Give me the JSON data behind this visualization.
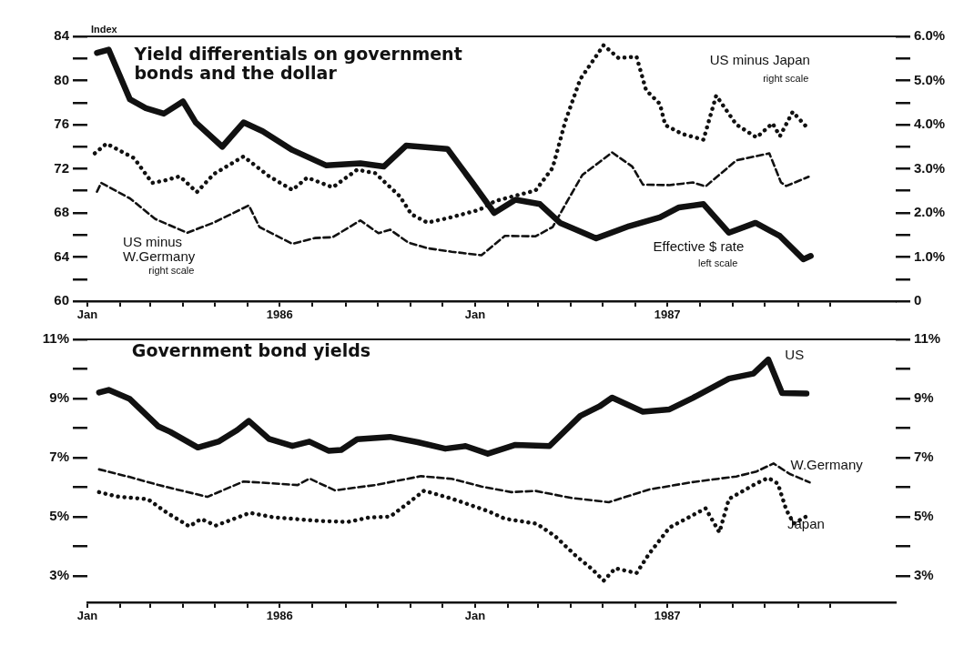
{
  "chart_data": [
    {
      "type": "line",
      "title": "Yield differentials on government bonds and the dollar",
      "ylabel": "Index",
      "annotations": [
        "left scale",
        "right scale",
        "right scale"
      ],
      "xlim": [
        "1986-01",
        "1988-02"
      ],
      "xticks": [
        {
          "value": "1986-01",
          "label": "Jan"
        },
        {
          "value": "1986-02",
          "label": null
        },
        {
          "value": "1986-03",
          "label": null
        },
        {
          "value": "1986-04",
          "label": null
        },
        {
          "value": "1986-05",
          "label": null
        },
        {
          "value": "1986-06",
          "label": null
        },
        {
          "value": "1986-07",
          "label": "1986"
        },
        {
          "value": "1986-08",
          "label": null
        },
        {
          "value": "1986-09",
          "label": null
        },
        {
          "value": "1986-10",
          "label": null
        },
        {
          "value": "1986-11",
          "label": null
        },
        {
          "value": "1986-12",
          "label": null
        },
        {
          "value": "1987-01",
          "label": "Jan"
        },
        {
          "value": "1987-02",
          "label": null
        },
        {
          "value": "1987-03",
          "label": null
        },
        {
          "value": "1987-04",
          "label": null
        },
        {
          "value": "1987-05",
          "label": null
        },
        {
          "value": "1987-06",
          "label": null
        },
        {
          "value": "1987-07",
          "label": "1987"
        },
        {
          "value": "1987-08",
          "label": null
        },
        {
          "value": "1987-09",
          "label": null
        },
        {
          "value": "1987-10",
          "label": null
        },
        {
          "value": "1987-11",
          "label": null
        },
        {
          "value": "1987-12",
          "label": null
        }
      ],
      "ylim": [
        60,
        84
      ],
      "yticks": [
        60,
        {
          "value": 62,
          "label": null
        },
        64,
        {
          "value": 66,
          "label": null
        },
        68,
        {
          "value": 70,
          "label": null
        },
        72,
        {
          "value": 74,
          "label": null
        },
        76,
        {
          "value": 78,
          "label": null
        },
        80,
        {
          "value": 82,
          "label": null
        },
        84
      ],
      "y2lim": [
        0,
        6
      ],
      "y2ticks": [
        0,
        {
          "value": 0.5,
          "label": null
        },
        {
          "value": 1,
          "label": "1.0%"
        },
        {
          "value": 1.5,
          "label": null
        },
        {
          "value": 2,
          "label": "2.0%"
        },
        {
          "value": 2.5,
          "label": null
        },
        {
          "value": 3,
          "label": "3.0%"
        },
        {
          "value": 3.5,
          "label": null
        },
        {
          "value": 4,
          "label": "4.0%"
        },
        {
          "value": 4.5,
          "label": null
        },
        {
          "value": 5,
          "label": "5.0%"
        },
        {
          "value": 5.5,
          "label": null
        },
        {
          "value": 6,
          "label": "6.0%"
        }
      ],
      "series": [
        {
          "name": "Effective $ rate",
          "color": "#111111",
          "line_style": "solid",
          "axis": "y",
          "x": [
            "1986-01-10",
            "1986-01-21",
            "1986-02-10",
            "1986-02-25",
            "1986-03-14",
            "1986-04-01",
            "1986-04-13",
            "1986-05-08",
            "1986-05-28",
            "1986-06-15",
            "1986-07-13",
            "1986-08-14",
            "1986-09-15",
            "1986-10-07",
            "1986-10-28",
            "1986-12-06",
            "1986-12-29",
            "1987-01-19",
            "1987-02-08",
            "1987-03-03",
            "1987-03-22",
            "1987-04-25",
            "1987-05-26",
            "1987-06-24",
            "1987-07-12",
            "1987-08-04",
            "1987-08-28",
            "1987-09-22",
            "1987-10-15",
            "1987-11-06",
            "1987-11-13"
          ],
          "values": [
            82.5,
            82.8,
            78.3,
            77.5,
            77.0,
            78.1,
            76.2,
            74.0,
            76.2,
            75.4,
            73.7,
            72.3,
            72.5,
            72.2,
            74.1,
            73.8,
            70.8,
            68.0,
            69.2,
            68.8,
            67.1,
            65.7,
            66.8,
            67.6,
            68.5,
            68.8,
            66.2,
            67.1,
            65.9,
            63.8,
            64.1
          ]
        },
        {
          "name": "US minus Japan",
          "color": "#111111",
          "line_style": "dotted",
          "axis": "y2",
          "x": [
            "1986-01-08",
            "1986-01-19",
            "1986-02-14",
            "1986-03-03",
            "1986-03-14",
            "1986-03-29",
            "1986-04-14",
            "1986-04-30",
            "1986-05-28",
            "1986-06-21",
            "1986-07-13",
            "1986-07-27",
            "1986-08-20",
            "1986-09-12",
            "1986-09-29",
            "1986-10-22",
            "1986-11-02",
            "1986-11-17",
            "1986-12-06",
            "1987-01-05",
            "1987-01-20",
            "1987-02-27",
            "1987-03-15",
            "1987-03-27",
            "1987-04-10",
            "1987-05-02",
            "1987-05-16",
            "1987-06-02",
            "1987-06-11",
            "1987-06-24",
            "1987-06-29",
            "1987-07-15",
            "1987-08-04",
            "1987-08-16",
            "1987-09-04",
            "1987-09-23",
            "1987-10-08",
            "1987-10-15",
            "1987-10-27",
            "1987-11-09"
          ],
          "values": [
            3.35,
            3.57,
            3.24,
            2.68,
            2.73,
            2.83,
            2.47,
            2.88,
            3.28,
            2.83,
            2.52,
            2.8,
            2.58,
            2.98,
            2.9,
            2.38,
            1.97,
            1.78,
            1.88,
            2.07,
            2.27,
            2.51,
            3.02,
            4.08,
            5.03,
            5.8,
            5.51,
            5.54,
            4.78,
            4.47,
            3.99,
            3.79,
            3.66,
            4.66,
            4.0,
            3.71,
            4.03,
            3.74,
            4.29,
            3.95
          ]
        },
        {
          "name": "US minus W.Germany",
          "color": "#111111",
          "line_style": "dashed",
          "axis": "y2",
          "x": [
            "1986-01-10",
            "1986-01-14",
            "1986-02-10",
            "1986-03-06",
            "1986-04-05",
            "1986-04-30",
            "1986-06-02",
            "1986-06-12",
            "1986-07-13",
            "1986-08-03",
            "1986-08-20",
            "1986-09-15",
            "1986-10-02",
            "1986-10-13",
            "1986-10-30",
            "1986-11-17",
            "1986-12-10",
            "1987-01-07",
            "1987-01-29",
            "1987-02-27",
            "1987-03-15",
            "1987-03-27",
            "1987-04-12",
            "1987-04-28",
            "1987-05-10",
            "1987-05-29",
            "1987-06-08",
            "1987-07-03",
            "1987-07-25",
            "1987-08-06",
            "1987-09-04",
            "1987-10-05",
            "1987-10-16",
            "1987-10-21",
            "1987-11-11"
          ],
          "values": [
            2.48,
            2.68,
            2.33,
            1.86,
            1.55,
            1.78,
            2.17,
            1.68,
            1.3,
            1.43,
            1.45,
            1.83,
            1.54,
            1.62,
            1.33,
            1.2,
            1.12,
            1.04,
            1.48,
            1.47,
            1.68,
            2.19,
            2.86,
            3.15,
            3.37,
            3.05,
            2.64,
            2.63,
            2.69,
            2.6,
            3.19,
            3.35,
            2.69,
            2.61,
            2.82
          ]
        }
      ]
    },
    {
      "type": "line",
      "title": "Government bond yields",
      "xlim": [
        "1986-01",
        "1988-02"
      ],
      "xticks": [
        {
          "value": "1986-01",
          "label": "Jan"
        },
        {
          "value": "1986-02",
          "label": null
        },
        {
          "value": "1986-03",
          "label": null
        },
        {
          "value": "1986-04",
          "label": null
        },
        {
          "value": "1986-05",
          "label": null
        },
        {
          "value": "1986-06",
          "label": null
        },
        {
          "value": "1986-07",
          "label": "1986"
        },
        {
          "value": "1986-08",
          "label": null
        },
        {
          "value": "1986-09",
          "label": null
        },
        {
          "value": "1986-10",
          "label": null
        },
        {
          "value": "1986-11",
          "label": null
        },
        {
          "value": "1986-12",
          "label": null
        },
        {
          "value": "1987-01",
          "label": "Jan"
        },
        {
          "value": "1987-02",
          "label": null
        },
        {
          "value": "1987-03",
          "label": null
        },
        {
          "value": "1987-04",
          "label": null
        },
        {
          "value": "1987-05",
          "label": null
        },
        {
          "value": "1987-06",
          "label": null
        },
        {
          "value": "1987-07",
          "label": "1987"
        },
        {
          "value": "1987-08",
          "label": null
        },
        {
          "value": "1987-09",
          "label": null
        },
        {
          "value": "1987-10",
          "label": null
        },
        {
          "value": "1987-11",
          "label": null
        },
        {
          "value": "1987-12",
          "label": null
        }
      ],
      "ylim": [
        2.1,
        11
      ],
      "yticks": [
        {
          "value": 3,
          "label": "3%"
        },
        {
          "value": 4,
          "label": null
        },
        {
          "value": 5,
          "label": "5%"
        },
        {
          "value": 6,
          "label": null
        },
        {
          "value": 7,
          "label": "7%"
        },
        {
          "value": 8,
          "label": null
        },
        {
          "value": 9,
          "label": "9%"
        },
        {
          "value": 10,
          "label": null
        },
        {
          "value": 11,
          "label": "11%"
        }
      ],
      "y2lim": [
        2.1,
        11
      ],
      "y2ticks": [
        {
          "value": 3,
          "label": "3%"
        },
        {
          "value": 4,
          "label": null
        },
        {
          "value": 5,
          "label": "5%"
        },
        {
          "value": 6,
          "label": null
        },
        {
          "value": 7,
          "label": "7%"
        },
        {
          "value": 8,
          "label": null
        },
        {
          "value": 9,
          "label": "9%"
        },
        {
          "value": 10,
          "label": null
        },
        {
          "value": 11,
          "label": "11%"
        }
      ],
      "series": [
        {
          "name": "US",
          "color": "#111111",
          "line_style": "solid",
          "axis": "y",
          "x": [
            "1986-01-12",
            "1986-01-21",
            "1986-02-10",
            "1986-03-09",
            "1986-03-20",
            "1986-04-15",
            "1986-05-05",
            "1986-05-22",
            "1986-06-02",
            "1986-06-21",
            "1986-07-13",
            "1986-07-29",
            "1986-08-16",
            "1986-08-28",
            "1986-09-12",
            "1986-10-13",
            "1986-11-08",
            "1986-12-04",
            "1986-12-23",
            "1987-01-13",
            "1987-02-08",
            "1987-03-12",
            "1987-04-10",
            "1987-04-28",
            "1987-05-10",
            "1987-06-08",
            "1987-07-03",
            "1987-07-25",
            "1987-08-28",
            "1987-09-20",
            "1987-10-04",
            "1987-10-17",
            "1987-11-09"
          ],
          "values": [
            9.2,
            9.29,
            8.98,
            8.05,
            7.87,
            7.34,
            7.55,
            7.93,
            8.24,
            7.63,
            7.39,
            7.54,
            7.23,
            7.26,
            7.62,
            7.7,
            7.52,
            7.3,
            7.39,
            7.13,
            7.43,
            7.39,
            8.41,
            8.73,
            9.03,
            8.55,
            8.63,
            9.02,
            9.67,
            9.84,
            10.32,
            9.18,
            9.17
          ]
        },
        {
          "name": "W.Germany",
          "color": "#111111",
          "line_style": "dashed",
          "axis": "y",
          "x": [
            "1986-01-12",
            "1986-02-10",
            "1986-03-09",
            "1986-04-24",
            "1986-05-28",
            "1986-07-18",
            "1986-07-29",
            "1986-08-22",
            "1986-09-29",
            "1986-11-11",
            "1986-12-10",
            "1987-01-07",
            "1987-02-04",
            "1987-02-27",
            "1987-04-02",
            "1987-05-07",
            "1987-06-14",
            "1987-07-25",
            "1987-09-04",
            "1987-09-23",
            "1987-10-09",
            "1987-10-24",
            "1987-11-12"
          ],
          "values": [
            6.6,
            6.34,
            6.07,
            5.67,
            6.19,
            6.07,
            6.29,
            5.89,
            6.07,
            6.37,
            6.28,
            6.02,
            5.83,
            5.87,
            5.63,
            5.49,
            5.92,
            6.17,
            6.36,
            6.53,
            6.8,
            6.45,
            6.16
          ]
        },
        {
          "name": "Japan",
          "color": "#111111",
          "line_style": "dotted",
          "axis": "y",
          "x": [
            "1986-01-12",
            "1986-01-29",
            "1986-02-27",
            "1986-03-17",
            "1986-04-07",
            "1986-04-18",
            "1986-05-02",
            "1986-06-03",
            "1986-06-25",
            "1986-08-05",
            "1986-09-03",
            "1986-09-23",
            "1986-10-13",
            "1986-10-30",
            "1986-11-14",
            "1986-12-10",
            "1987-01-13",
            "1987-01-29",
            "1987-02-28",
            "1987-03-17",
            "1987-04-06",
            "1987-04-21",
            "1987-05-02",
            "1987-05-13",
            "1987-06-02",
            "1987-06-14",
            "1987-07-03",
            "1987-08-06",
            "1987-08-19",
            "1987-08-28",
            "1987-09-23",
            "1987-10-04",
            "1987-10-13",
            "1987-10-21",
            "1987-10-28",
            "1987-11-13"
          ],
          "values": [
            5.83,
            5.68,
            5.59,
            5.13,
            4.67,
            4.92,
            4.7,
            5.13,
            4.98,
            4.86,
            4.82,
            4.97,
            5.0,
            5.46,
            5.88,
            5.61,
            5.19,
            4.93,
            4.76,
            4.35,
            3.67,
            3.23,
            2.83,
            3.25,
            3.09,
            3.75,
            4.63,
            5.28,
            4.47,
            5.6,
            6.13,
            6.31,
            6.12,
            5.23,
            4.77,
            5.09
          ]
        }
      ]
    }
  ]
}
